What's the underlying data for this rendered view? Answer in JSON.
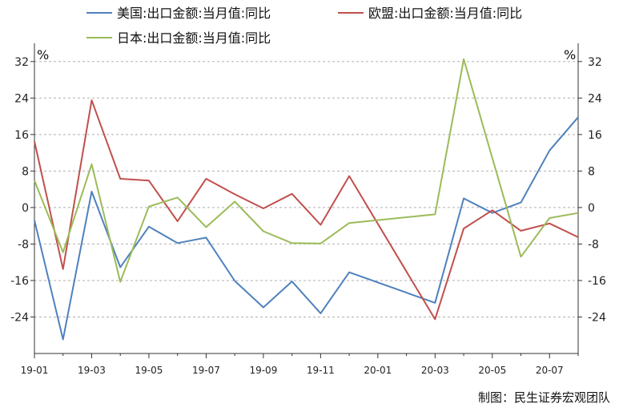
{
  "chart_data": {
    "type": "line",
    "unit_left": "%",
    "unit_right": "%",
    "source": "制图：民生证券宏观团队",
    "legend_placement": "top",
    "y_ticks": [
      32,
      24,
      16,
      8,
      0,
      -8,
      -16,
      -24
    ],
    "ylim": [
      -32,
      36
    ],
    "grid": true,
    "x": [
      "19-01",
      "19-02",
      "19-03",
      "19-04",
      "19-05",
      "19-06",
      "19-07",
      "19-08",
      "19-09",
      "19-10",
      "19-11",
      "19-12",
      "20-01",
      "20-02",
      "20-03",
      "20-04",
      "20-05",
      "20-06",
      "20-07",
      "20-08"
    ],
    "x_tick_labels": [
      "19-01",
      "19-03",
      "19-05",
      "19-07",
      "19-09",
      "19-11",
      "20-01",
      "20-03",
      "20-05",
      "20-07"
    ],
    "series": [
      {
        "name": "美国:出口金额:当月值:同比",
        "color": "#4f81bd",
        "values": [
          -2.8,
          -28.9,
          3.5,
          -13.1,
          -4.2,
          -7.8,
          -6.6,
          -16.1,
          -21.9,
          -16.2,
          -23.2,
          -14.2,
          null,
          null,
          -20.9,
          2.0,
          -1.2,
          1.1,
          12.5,
          19.8
        ]
      },
      {
        "name": "欧盟:出口金额:当月值:同比",
        "color": "#c0504d",
        "values": [
          14.5,
          -13.5,
          23.5,
          6.3,
          5.9,
          -3.0,
          6.3,
          2.9,
          -0.2,
          3.0,
          -3.8,
          6.9,
          null,
          null,
          -24.5,
          -4.6,
          -0.6,
          -5.1,
          -3.5,
          -6.5
        ]
      },
      {
        "name": "日本:出口金额:当月值:同比",
        "color": "#9bbb59",
        "values": [
          5.9,
          -9.8,
          9.5,
          -16.3,
          0.2,
          2.2,
          -4.3,
          1.3,
          -5.2,
          -7.8,
          -7.9,
          -3.4,
          null,
          null,
          -1.5,
          32.5,
          null,
          -10.8,
          -2.3,
          -1.2
        ]
      }
    ]
  }
}
